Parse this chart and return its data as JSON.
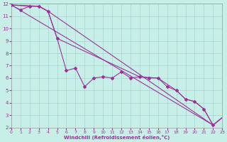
{
  "xlabel": "Windchill (Refroidissement éolien,°C)",
  "bg_color": "#c8eee8",
  "grid_color": "#a8d4ce",
  "line_color": "#993399",
  "xlim": [
    0,
    23
  ],
  "ylim": [
    2,
    12
  ],
  "xtick_labels": [
    "0",
    "1",
    "2",
    "3",
    "4",
    "5",
    "6",
    "7",
    "8",
    "9",
    "10",
    "11",
    "12",
    "13",
    "14",
    "15",
    "16",
    "17",
    "18",
    "19",
    "20",
    "21",
    "22",
    "23"
  ],
  "xticks": [
    0,
    1,
    2,
    3,
    4,
    5,
    6,
    7,
    8,
    9,
    10,
    11,
    12,
    13,
    14,
    15,
    16,
    17,
    18,
    19,
    20,
    21,
    22,
    23
  ],
  "yticks": [
    2,
    3,
    4,
    5,
    6,
    7,
    8,
    9,
    10,
    11,
    12
  ],
  "line1_x": [
    0,
    1,
    2,
    3,
    4,
    5,
    6,
    7,
    8,
    9,
    10,
    11,
    12,
    13,
    14,
    15,
    16,
    17,
    18,
    19,
    20,
    21,
    22
  ],
  "line1_y": [
    11.9,
    11.5,
    11.8,
    11.8,
    11.4,
    9.2,
    6.6,
    6.8,
    5.3,
    6.0,
    6.1,
    6.0,
    6.5,
    6.0,
    6.1,
    6.0,
    6.0,
    5.3,
    5.0,
    4.3,
    4.1,
    3.5,
    2.2
  ],
  "line2_x": [
    0,
    22,
    23
  ],
  "line2_y": [
    11.9,
    2.2,
    2.8
  ],
  "line3_x": [
    0,
    3,
    4,
    5,
    14,
    16,
    18,
    19,
    20,
    21,
    22,
    23
  ],
  "line3_y": [
    11.9,
    11.8,
    11.4,
    9.2,
    6.1,
    6.0,
    5.0,
    4.3,
    4.1,
    3.5,
    2.2,
    2.8
  ],
  "line4_x": [
    0,
    2,
    3,
    4,
    22,
    23
  ],
  "line4_y": [
    11.9,
    11.8,
    11.8,
    11.4,
    2.2,
    2.8
  ]
}
